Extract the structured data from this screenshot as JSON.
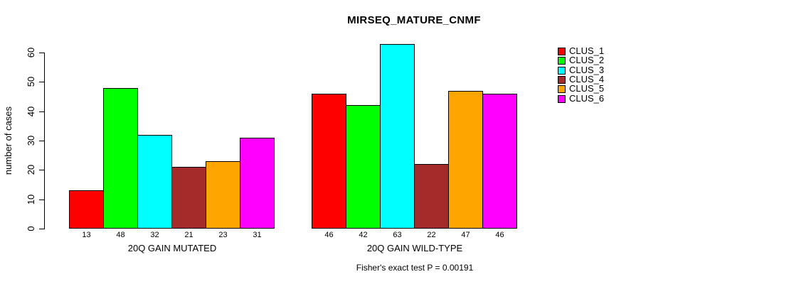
{
  "title": "MIRSEQ_MATURE_CNMF",
  "y_axis": {
    "label": "number of cases",
    "ticks": [
      0,
      10,
      20,
      30,
      40,
      50,
      60
    ]
  },
  "legend": {
    "items": [
      {
        "label": "CLUS_1",
        "color": "#FF0000"
      },
      {
        "label": "CLUS_2",
        "color": "#00FF00"
      },
      {
        "label": "CLUS_3",
        "color": "#00FFFF"
      },
      {
        "label": "CLUS_4",
        "color": "#A52A2A"
      },
      {
        "label": "CLUS_5",
        "color": "#FFA500"
      },
      {
        "label": "CLUS_6",
        "color": "#FF00FF"
      }
    ]
  },
  "footer": "Fisher's exact test P = 0.00191",
  "chart_data": {
    "type": "bar",
    "title": "MIRSEQ_MATURE_CNMF",
    "xlabel": "",
    "ylabel": "number of cases",
    "ylim": [
      0,
      60
    ],
    "grid": false,
    "legend_position": "right-outside",
    "bar_value_labels": true,
    "categories": [
      "20Q GAIN MUTATED",
      "20Q GAIN WILD-TYPE"
    ],
    "series": [
      {
        "name": "CLUS_1",
        "color": "#FF0000",
        "values": [
          13,
          46
        ]
      },
      {
        "name": "CLUS_2",
        "color": "#00FF00",
        "values": [
          48,
          42
        ]
      },
      {
        "name": "CLUS_3",
        "color": "#00FFFF",
        "values": [
          32,
          63
        ]
      },
      {
        "name": "CLUS_4",
        "color": "#A52A2A",
        "values": [
          21,
          22
        ]
      },
      {
        "name": "CLUS_5",
        "color": "#FFA500",
        "values": [
          23,
          47
        ]
      },
      {
        "name": "CLUS_6",
        "color": "#FF00FF",
        "values": [
          31,
          46
        ]
      }
    ],
    "annotation": "Fisher's exact test P = 0.00191"
  }
}
